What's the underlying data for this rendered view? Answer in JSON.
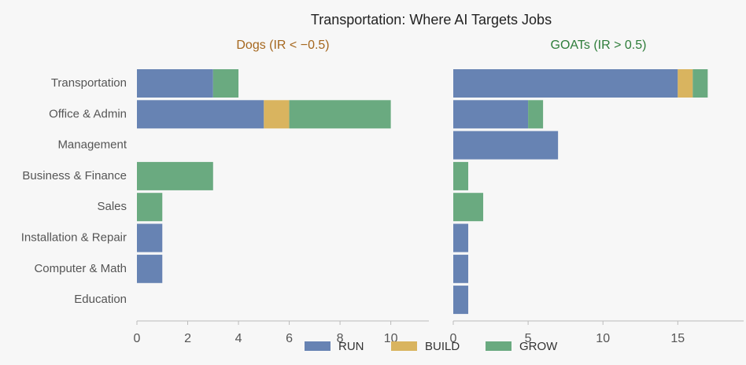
{
  "chart_data": {
    "type": "bar",
    "title": "Transportation: Where AI Targets Jobs",
    "categories": [
      "Transportation",
      "Office & Admin",
      "Management",
      "Business & Finance",
      "Sales",
      "Installation & Repair",
      "Computer & Math",
      "Education"
    ],
    "series": [
      {
        "name": "RUN",
        "color": "#6783b3"
      },
      {
        "name": "BUILD",
        "color": "#d9b45f"
      },
      {
        "name": "GROW",
        "color": "#6aaa80"
      }
    ],
    "panels": [
      {
        "subtitle": "Dogs (IR < −0.5)",
        "subtitle_color": "#a5671e",
        "xlim": [
          0,
          11.5
        ],
        "xticks": [
          0,
          2,
          4,
          6,
          8,
          10
        ],
        "values": [
          [
            3,
            5,
            0,
            0,
            0,
            1,
            1,
            0
          ],
          [
            0,
            1,
            0,
            0,
            0,
            0,
            0,
            0
          ],
          [
            1,
            4,
            0,
            3,
            1,
            0,
            0,
            0
          ]
        ]
      },
      {
        "subtitle": "GOATs (IR > 0.5)",
        "subtitle_color": "#2e7d3a",
        "xlim": [
          0,
          19.4
        ],
        "xticks": [
          0,
          5,
          10,
          15
        ],
        "values": [
          [
            15,
            5,
            7,
            0,
            0,
            1,
            1,
            1
          ],
          [
            1,
            0,
            0,
            0,
            0,
            0,
            0,
            0
          ],
          [
            1,
            1,
            0,
            1,
            2,
            0,
            0,
            0
          ]
        ]
      }
    ]
  }
}
